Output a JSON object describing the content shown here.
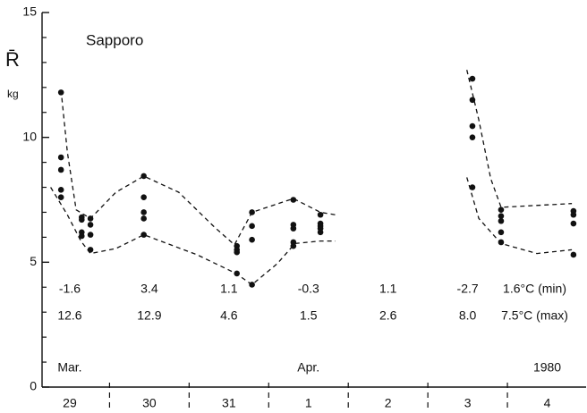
{
  "chart_data": {
    "type": "scatter",
    "title": "Sapporo",
    "y_label": "R̄",
    "y_unit": "kg",
    "ylim": [
      0,
      15
    ],
    "yticks": [
      0,
      5,
      10,
      15
    ],
    "y_minor_ticks": [
      1,
      2,
      3,
      4,
      6,
      7,
      8,
      9,
      11,
      12,
      13,
      14
    ],
    "xlim": [
      0,
      7
    ],
    "categories": [
      "29",
      "30",
      "31",
      "1",
      "2",
      "3",
      "4"
    ],
    "months": [
      "Mar.",
      "Apr.",
      "1980"
    ],
    "temperature_min": [
      "-1.6",
      "3.4",
      "1.1",
      "-0.3",
      "1.1",
      "-2.7",
      "1.6°C (min)"
    ],
    "temperature_max": [
      "12.6",
      "12.9",
      "4.6",
      "1.5",
      "2.6",
      "8.0",
      "7.5°C (max)"
    ],
    "color": "#111111",
    "points": {
      "x": [
        0.39,
        0.39,
        0.39,
        0.39,
        0.39,
        0.65,
        0.65,
        0.65,
        0.65,
        0.76,
        0.76,
        0.76,
        0.76,
        1.43,
        1.43,
        1.43,
        1.43,
        1.43,
        2.6,
        2.6,
        2.6,
        2.6,
        2.79,
        2.79,
        2.79,
        2.79,
        3.31,
        3.31,
        3.31,
        3.31,
        3.31,
        3.65,
        3.65,
        3.65,
        3.65,
        3.65,
        5.56,
        5.56,
        5.56,
        5.56,
        5.56,
        5.92,
        5.92,
        5.92,
        5.92,
        5.92,
        6.83,
        6.83,
        6.83,
        6.83
      ],
      "values": [
        11.8,
        9.2,
        8.7,
        7.9,
        7.6,
        6.8,
        6.7,
        6.2,
        6.05,
        6.75,
        6.5,
        6.1,
        5.5,
        8.45,
        7.6,
        7.0,
        6.75,
        6.1,
        5.65,
        5.5,
        5.4,
        4.55,
        7.0,
        6.45,
        5.9,
        4.1,
        7.5,
        6.5,
        6.35,
        5.8,
        5.65,
        6.9,
        6.55,
        6.45,
        6.35,
        6.2,
        12.35,
        11.5,
        10.45,
        10.0,
        8.0,
        7.1,
        6.85,
        6.65,
        6.2,
        5.8,
        7.05,
        6.9,
        6.55,
        5.3
      ]
    },
    "curves": [
      {
        "x": [
          0.39,
          0.47,
          0.58,
          0.76,
          1.08,
          1.43,
          1.87,
          2.32,
          2.57,
          2.79,
          3.31,
          3.65,
          3.84,
          null,
          5.49,
          5.64,
          5.79,
          5.92,
          6.81
        ],
        "values": [
          11.9,
          9.4,
          7.1,
          6.75,
          7.8,
          8.45,
          7.8,
          6.4,
          5.7,
          7.0,
          7.55,
          7.0,
          6.9,
          null,
          12.7,
          10.7,
          8.35,
          7.2,
          7.35
        ]
      },
      {
        "x": [
          0.26,
          0.47,
          0.64,
          0.76,
          1.08,
          1.43,
          2.1,
          2.59,
          2.79,
          3.11,
          3.33,
          3.65,
          3.84,
          null,
          5.49,
          5.64,
          5.92,
          6.37,
          6.81
        ],
        "values": [
          8.0,
          6.9,
          5.85,
          5.35,
          5.55,
          6.1,
          5.3,
          4.55,
          4.1,
          4.95,
          5.75,
          5.85,
          5.85,
          null,
          8.4,
          6.75,
          5.75,
          5.35,
          5.5
        ]
      }
    ]
  }
}
